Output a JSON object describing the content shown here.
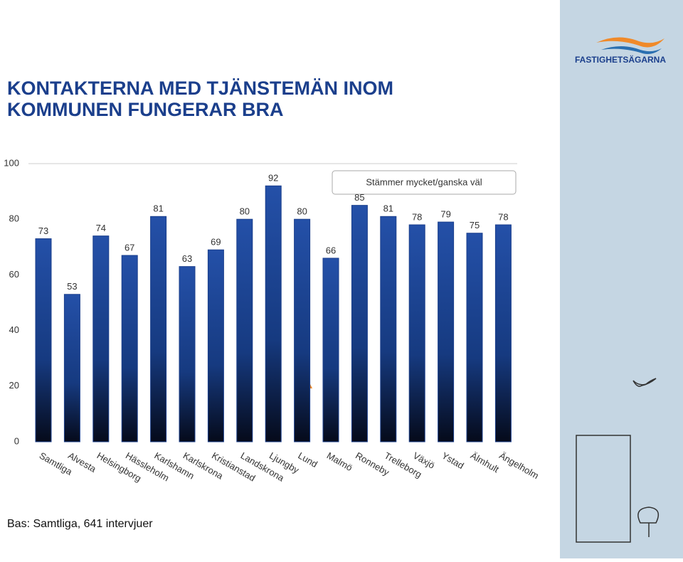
{
  "logo": "FASTIGHETSÄGARNA",
  "footnote": "Bas: Samtliga, 641 intervjuer",
  "chart_data": {
    "type": "bar",
    "title": "KONTAKTERNA MED TJÄNSTEMÄN INOM KOMMUNEN FUNGERAR BRA",
    "categories": [
      "Samtliga",
      "Alvesta",
      "Helsingborg",
      "Hässleholm",
      "Karlshamn",
      "Karlskrona",
      "Kristianstad",
      "Landskrona",
      "Ljungby",
      "Lund",
      "Malmö",
      "Ronneby",
      "Trelleborg",
      "Växjö",
      "Ystad",
      "Älmhult",
      "Ängelholm"
    ],
    "series": [
      {
        "name": "Stämmer mycket/ganska väl",
        "color": "#1b3f8c",
        "values": [
          73,
          53,
          74,
          67,
          81,
          63,
          69,
          80,
          92,
          80,
          66,
          85,
          81,
          78,
          79,
          75,
          78
        ]
      }
    ],
    "ylim": [
      0,
      100
    ],
    "yticks": [
      0,
      20,
      40,
      60,
      80,
      100
    ],
    "grid": false
  }
}
